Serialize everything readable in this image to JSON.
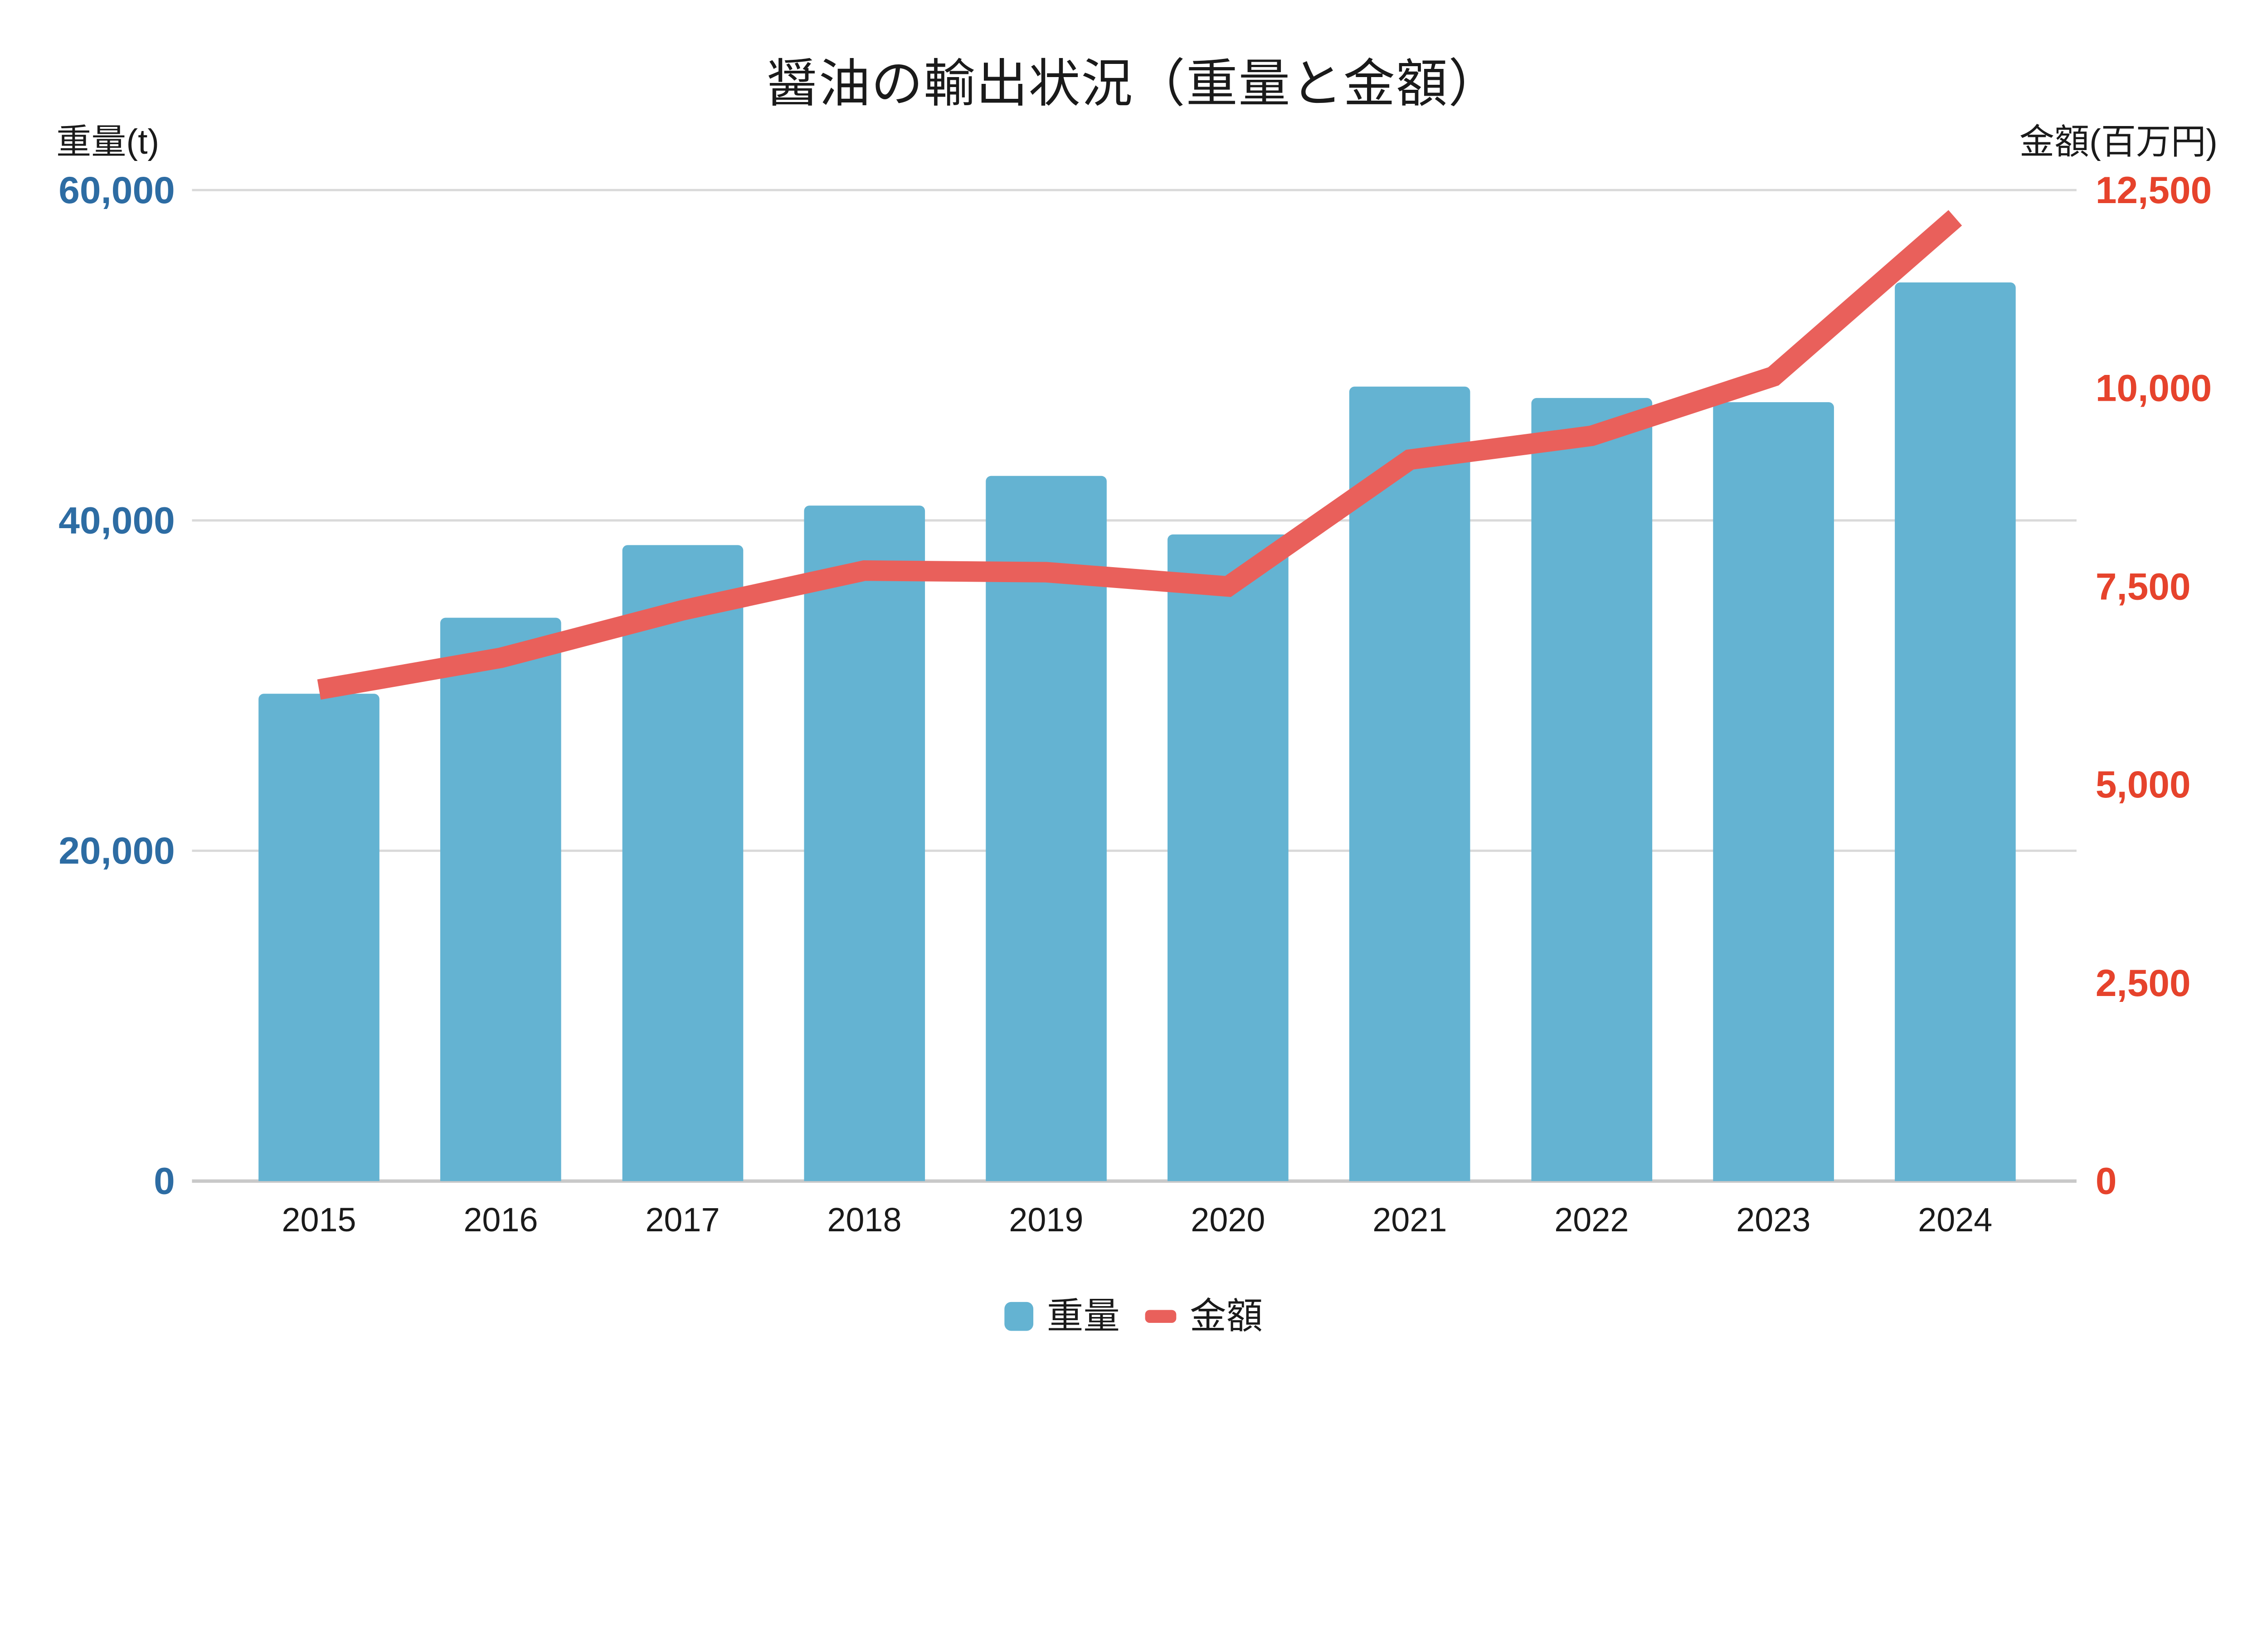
{
  "page": {
    "background": "#FFFFFF"
  },
  "chart_data": {
    "type": "bar+line",
    "title": "醤油の輸出状況（重量と金額）",
    "categories": [
      "2015",
      "2016",
      "2017",
      "2018",
      "2019",
      "2020",
      "2021",
      "2022",
      "2023",
      "2024"
    ],
    "series": [
      {
        "name": "重量",
        "type": "bar",
        "axis": "left",
        "unit": "t",
        "color": "#64B3D2",
        "values": [
          29500,
          34100,
          38500,
          40900,
          42700,
          39150,
          48100,
          47400,
          47150,
          54400
        ]
      },
      {
        "name": "金額",
        "type": "line",
        "axis": "right",
        "unit": "百万円",
        "color": "#E9605B",
        "values": [
          6200,
          6600,
          7200,
          7700,
          7680,
          7500,
          9100,
          9400,
          10150,
          12150
        ]
      }
    ],
    "left_axis": {
      "label": "重量(t)",
      "min": 0,
      "max": 60000,
      "tick_values": [
        0,
        20000,
        40000,
        60000
      ],
      "tick_labels": [
        "0",
        "20,000",
        "40,000",
        "60,000"
      ],
      "tick_color": "#2D6CA3"
    },
    "right_axis": {
      "label": "金額(百万円)",
      "min": 0,
      "max": 12500,
      "tick_values": [
        0,
        2500,
        5000,
        7500,
        10000,
        12500
      ],
      "tick_labels": [
        "0",
        "2,500",
        "5,000",
        "7,500",
        "10,000",
        "12,500"
      ],
      "tick_color": "#E6432C"
    },
    "grid": {
      "show_horizontal": true,
      "on_ticks": "left-axis",
      "color": "#D9D9D9",
      "axis_line_color": "#C9C9C9"
    },
    "legend": {
      "position": "bottom-center",
      "items": [
        {
          "label": "重量",
          "marker": "square",
          "color": "#64B3D2"
        },
        {
          "label": "金額",
          "marker": "dash",
          "color": "#E9605B"
        }
      ]
    }
  }
}
